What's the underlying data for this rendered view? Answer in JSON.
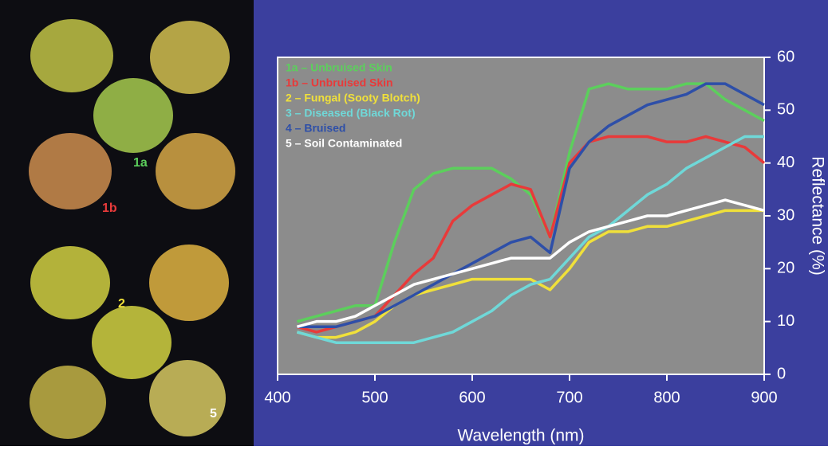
{
  "photo": {
    "labels": [
      "1a",
      "1b",
      "2",
      "5"
    ]
  },
  "chart_data": {
    "type": "line",
    "x_label": "Wavelength (nm)",
    "y_label": "Reflectance (%)",
    "x": [
      420,
      440,
      460,
      480,
      500,
      520,
      540,
      560,
      580,
      600,
      620,
      640,
      660,
      680,
      700,
      720,
      740,
      760,
      780,
      800,
      820,
      840,
      860,
      880,
      900
    ],
    "series": [
      {
        "name": "1a – Unbruised Skin",
        "color": "#5ccf5c",
        "values": [
          10,
          11,
          12,
          13,
          13,
          25,
          35,
          38,
          39,
          39,
          39,
          37,
          34,
          26,
          42,
          54,
          55,
          54,
          54,
          54,
          55,
          55,
          52,
          50,
          48
        ]
      },
      {
        "name": "1b – Unbruised Skin",
        "color": "#e83a3a",
        "values": [
          9,
          8,
          9,
          10,
          11,
          15,
          19,
          22,
          29,
          32,
          34,
          36,
          35,
          26,
          40,
          44,
          45,
          45,
          45,
          44,
          44,
          45,
          44,
          43,
          40
        ]
      },
      {
        "name": "2 – Fungal (Sooty Blotch)",
        "color": "#f0e03a",
        "values": [
          8,
          7,
          7,
          8,
          10,
          13,
          15,
          16,
          17,
          18,
          18,
          18,
          18,
          16,
          20,
          25,
          27,
          27,
          28,
          28,
          29,
          30,
          31,
          31,
          31
        ]
      },
      {
        "name": "3 – Diseased (Black Rot)",
        "color": "#6fd8d8",
        "values": [
          8,
          7,
          6,
          6,
          6,
          6,
          6,
          7,
          8,
          10,
          12,
          15,
          17,
          18,
          22,
          26,
          28,
          31,
          34,
          36,
          39,
          41,
          43,
          45,
          45
        ]
      },
      {
        "name": "4 – Bruised",
        "color": "#2e4fa8",
        "values": [
          9,
          9,
          9,
          10,
          11,
          13,
          15,
          17,
          19,
          21,
          23,
          25,
          26,
          23,
          39,
          44,
          47,
          49,
          51,
          52,
          53,
          55,
          55,
          53,
          51
        ]
      },
      {
        "name": "5 – Soil Contaminated",
        "color": "#ffffff",
        "values": [
          9,
          10,
          10,
          11,
          13,
          15,
          17,
          18,
          19,
          20,
          21,
          22,
          22,
          22,
          25,
          27,
          28,
          29,
          30,
          30,
          31,
          32,
          33,
          32,
          31
        ]
      }
    ],
    "xlim": [
      400,
      900
    ],
    "xticks": [
      400,
      500,
      600,
      700,
      800,
      900
    ],
    "ylim": [
      0,
      60
    ],
    "yticks": [
      0,
      10,
      20,
      30,
      40,
      50,
      60
    ],
    "plot_background": "#8c8c8c",
    "legend": "upper left"
  }
}
